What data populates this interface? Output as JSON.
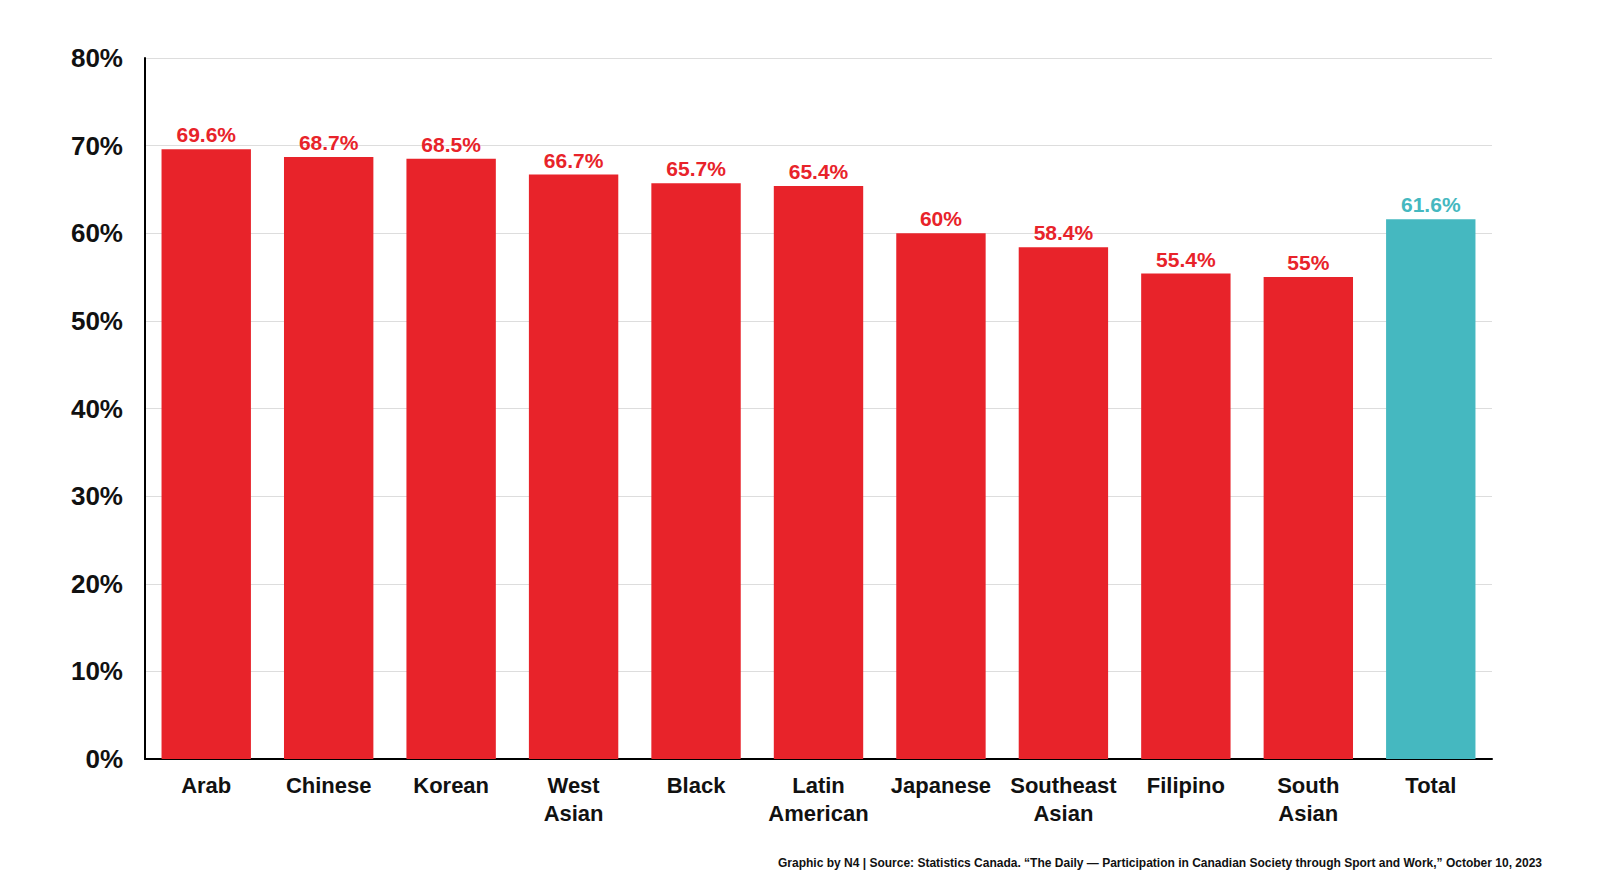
{
  "chart_data": {
    "type": "bar",
    "categories": [
      "Arab",
      "Chinese",
      "Korean",
      "West Asian",
      "Black",
      "Latin American",
      "Japanese",
      "Southeast Asian",
      "Filipino",
      "South Asian",
      "Total"
    ],
    "values": [
      69.6,
      68.7,
      68.5,
      66.7,
      65.7,
      65.4,
      60,
      58.4,
      55.4,
      55,
      61.6
    ],
    "value_labels": [
      "69.6%",
      "68.7%",
      "68.5%",
      "66.7%",
      "65.7%",
      "65.4%",
      "60%",
      "58.4%",
      "55.4%",
      "55%",
      "61.6%"
    ],
    "colors": [
      "#e8232a",
      "#e8232a",
      "#e8232a",
      "#e8232a",
      "#e8232a",
      "#e8232a",
      "#e8232a",
      "#e8232a",
      "#e8232a",
      "#e8232a",
      "#45b8c0"
    ],
    "ylim": [
      0,
      80
    ],
    "yticks": [
      {
        "value": 0,
        "label": "0%"
      },
      {
        "value": 10,
        "label": "10%"
      },
      {
        "value": 20,
        "label": "20%"
      },
      {
        "value": 30,
        "label": "30%"
      },
      {
        "value": 40,
        "label": "40%"
      },
      {
        "value": 50,
        "label": "50%"
      },
      {
        "value": 60,
        "label": "60%"
      },
      {
        "value": 70,
        "label": "70%"
      },
      {
        "value": 80,
        "label": "80%"
      }
    ],
    "annotations": [
      "Graphic by N4 | Source: Statistics Canada. “The Daily — Participation in Canadian Society through Sport and Work,” October 10, 2023"
    ],
    "grid": true,
    "data_labels": true
  }
}
